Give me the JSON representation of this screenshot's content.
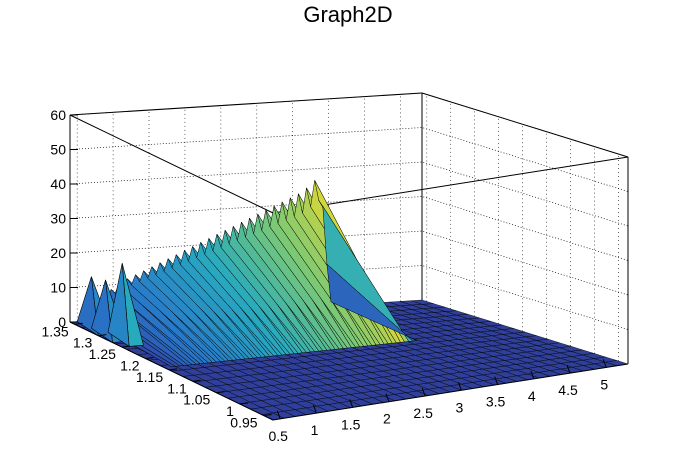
{
  "chart_data": {
    "type": "surface3d",
    "title": "Graph2D",
    "x_ticks": [
      "0.5",
      "1",
      "1.5",
      "2",
      "2.5",
      "3",
      "3.5",
      "4",
      "4.5",
      "5"
    ],
    "y_ticks": [
      "0.95",
      "1",
      "1.05",
      "1.1",
      "1.15",
      "1.2",
      "1.25",
      "1.3",
      "1.35"
    ],
    "z_ticks": [
      "0",
      "10",
      "20",
      "30",
      "40",
      "50",
      "60"
    ],
    "xlim": [
      0.4,
      5.3
    ],
    "ylim": [
      0.93,
      1.36
    ],
    "zlim": [
      0,
      60
    ],
    "grid": true,
    "colormap": "viridis",
    "surface_profile": {
      "x": [
        0.5,
        0.75,
        1.0,
        1.25,
        1.5,
        1.75,
        2.0,
        2.25,
        2.5,
        2.75,
        3.0,
        3.25,
        3.5,
        3.75,
        3.9
      ],
      "z": [
        2,
        8,
        11,
        13,
        15,
        17,
        19,
        21,
        23,
        25,
        27,
        29,
        31,
        35,
        2
      ]
    },
    "peaks": [
      {
        "x": 0.5,
        "y": 1.33,
        "z": 15
      },
      {
        "x": 0.5,
        "y": 1.3,
        "z": 16
      },
      {
        "x": 0.6,
        "y": 1.28,
        "z": 22
      }
    ]
  }
}
